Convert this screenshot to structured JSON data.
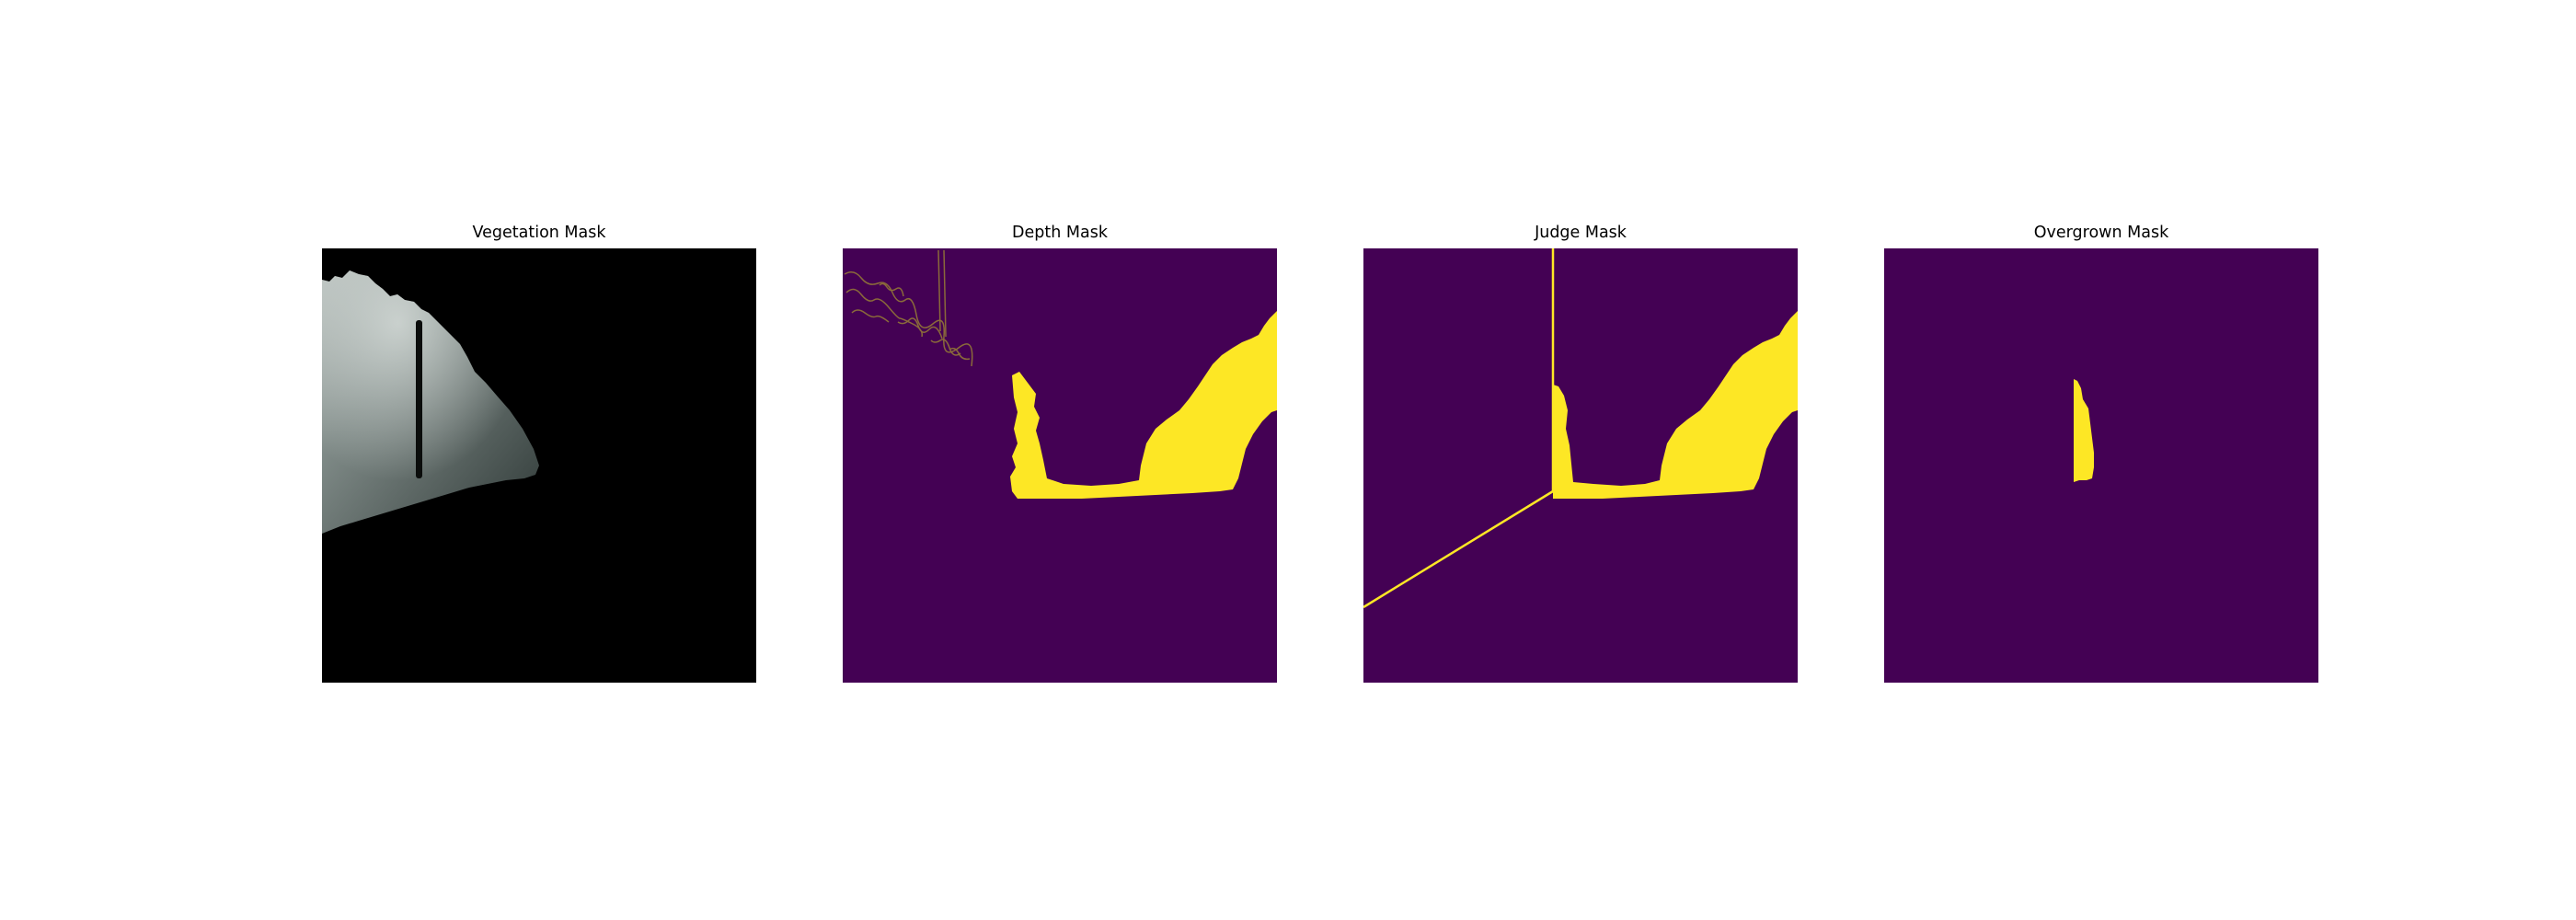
{
  "figure": {
    "panels": [
      {
        "title": "Vegetation Mask",
        "content": "masked-photo"
      },
      {
        "title": "Depth Mask",
        "content": "binary-mask"
      },
      {
        "title": "Judge Mask",
        "content": "binary-mask"
      },
      {
        "title": "Overgrown Mask",
        "content": "binary-mask"
      }
    ]
  },
  "colors": {
    "mask_background": "#440154",
    "mask_foreground": "#fde725",
    "photo_background": "#000000",
    "vegetation_dark": "#3c4643",
    "vegetation_light": "#9aa3a0",
    "page_background": "#ffffff"
  }
}
